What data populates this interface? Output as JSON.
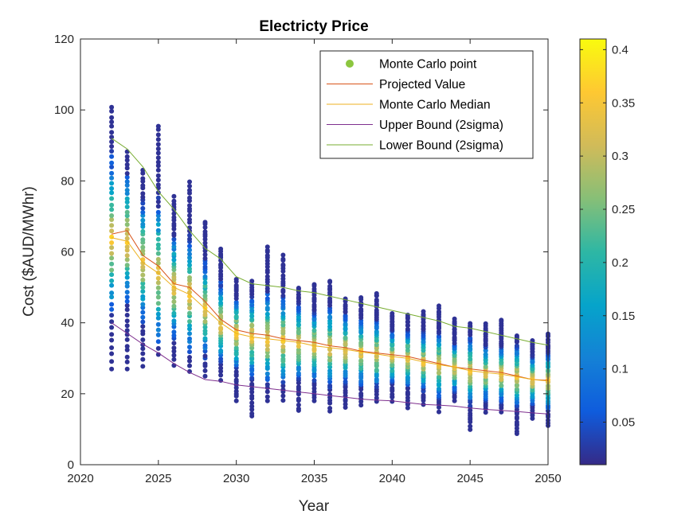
{
  "chart_data": {
    "type": "scatter",
    "title": "Electricty Price",
    "xlabel": "Year",
    "ylabel": "Cost ($AUD/MWhr)",
    "xlim": [
      2020,
      2050
    ],
    "ylim": [
      0,
      120
    ],
    "x_ticks": [
      "2020",
      "2025",
      "2030",
      "2035",
      "2040",
      "2045",
      "2050"
    ],
    "y_ticks": [
      "0",
      "20",
      "40",
      "60",
      "80",
      "100",
      "120"
    ],
    "legend_position": "top-right",
    "legend": [
      {
        "label": "Monte Carlo point",
        "color": "#8cc63f",
        "marker": "dot"
      },
      {
        "label": "Projected Value",
        "color": "#d95319",
        "marker": "line"
      },
      {
        "label": "Monte Carlo Median",
        "color": "#edb120",
        "marker": "line"
      },
      {
        "label": "Upper Bound (2sigma)",
        "color": "#7e2f8e",
        "marker": "line"
      },
      {
        "label": "Lower Bound (2sigma)",
        "color": "#77ac30",
        "marker": "line"
      }
    ],
    "colorbar": {
      "range": [
        0.01,
        0.41
      ],
      "ticks": [
        "0.05",
        "0.1",
        "0.15",
        "0.2",
        "0.25",
        "0.3",
        "0.35",
        "0.4"
      ],
      "colormap": "parula"
    },
    "years": [
      2022,
      2023,
      2024,
      2025,
      2026,
      2027,
      2028,
      2029,
      2030,
      2031,
      2032,
      2033,
      2034,
      2035,
      2036,
      2037,
      2038,
      2039,
      2040,
      2041,
      2042,
      2043,
      2044,
      2045,
      2046,
      2047,
      2048,
      2049,
      2050
    ],
    "series": [
      {
        "name": "Projected Value",
        "color": "#d95319",
        "values": [
          65,
          66,
          59,
          56,
          51,
          50,
          46,
          41,
          38,
          37,
          36.5,
          35.5,
          35,
          34.5,
          33.5,
          33,
          32,
          31.5,
          31,
          30.5,
          29.5,
          28.5,
          27.5,
          27,
          26.5,
          26,
          25,
          24,
          23.8
        ]
      },
      {
        "name": "Monte Carlo Median",
        "color": "#edb120",
        "values": [
          64,
          63,
          57,
          54,
          50,
          48,
          44,
          40,
          37,
          36,
          35.5,
          35,
          34.5,
          33.5,
          33,
          32.5,
          31.8,
          31.2,
          30.5,
          30,
          29,
          28.2,
          27.5,
          26.5,
          26,
          25.5,
          24.8,
          24,
          23.6
        ]
      },
      {
        "name": "Upper Bound (2sigma)",
        "color": "#7e2f8e",
        "values": [
          40,
          37,
          34,
          31.5,
          28.5,
          26,
          24,
          23.5,
          22.5,
          22,
          21.5,
          21,
          20.5,
          20,
          19.5,
          19,
          18.5,
          18.2,
          18,
          17.5,
          17,
          16.8,
          16.5,
          16,
          15.6,
          15.3,
          15,
          14.6,
          14.3
        ]
      },
      {
        "name": "Lower Bound (2sigma)",
        "color": "#77ac30",
        "values": [
          92,
          89,
          84,
          77,
          72,
          66,
          61,
          58,
          53,
          51,
          50.5,
          50,
          49,
          48.5,
          47.5,
          46.5,
          45.5,
          44.5,
          43.5,
          42.5,
          41.5,
          40.5,
          39,
          38.5,
          37.5,
          36.5,
          35.5,
          34.5,
          33.7
        ]
      }
    ],
    "scatter_range": {
      "low": [
        27,
        27,
        28,
        31,
        28,
        26,
        25,
        24,
        18,
        13.5,
        18,
        18,
        15,
        18,
        15,
        16,
        17,
        18,
        18,
        16,
        17,
        15,
        18,
        10,
        15,
        15,
        8.5,
        13,
        11
      ],
      "high": [
        101,
        88,
        83,
        95.5,
        75.5,
        79.5,
        68.5,
        61,
        52,
        51.5,
        61.5,
        59,
        50,
        51,
        52,
        47,
        47,
        48.5,
        42.5,
        42,
        43,
        44.5,
        41,
        40,
        39.5,
        41,
        36.5,
        35,
        37
      ]
    }
  }
}
